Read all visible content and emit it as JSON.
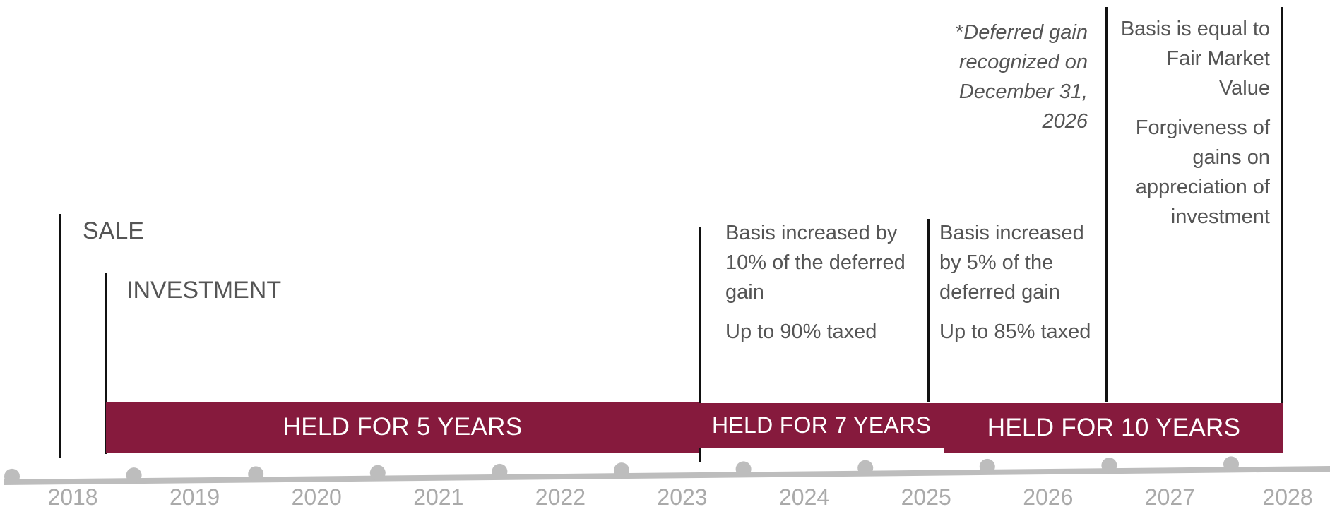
{
  "markers": {
    "sale": "SALE",
    "investment": "INVESTMENT"
  },
  "bars": {
    "five": "HELD FOR 5 YEARS",
    "seven": "HELD FOR 7 YEARS",
    "ten": "HELD FOR 10 YEARS",
    "color": "#861A3D"
  },
  "notes": {
    "seven_basis": "Basis increased by 10% of the deferred gain",
    "seven_tax": "Up to 90% taxed",
    "ten_basis": "Basis increased by 5% of the deferred gain",
    "ten_tax": "Up to 85% taxed",
    "deferred_asterisk": "*",
    "deferred": "Deferred gain recognized on December 31, 2026",
    "fmv": "Basis is equal to Fair Market Value",
    "forgiveness": "Forgiveness of gains on appreciation of investment"
  },
  "timeline": {
    "years": [
      "2018",
      "2019",
      "2020",
      "2021",
      "2022",
      "2023",
      "2024",
      "2025",
      "2026",
      "2027",
      "2028"
    ],
    "axis_color": "#BDBDBD"
  }
}
